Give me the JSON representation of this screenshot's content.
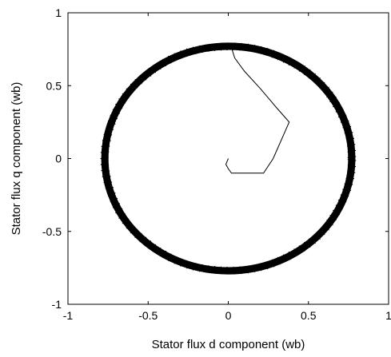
{
  "chart_data": {
    "type": "line",
    "title": "",
    "xlabel": "Stator flux d component (wb)",
    "ylabel": "Stator flux q component (wb)",
    "xlim": [
      -1,
      1
    ],
    "ylim": [
      -1,
      1
    ],
    "xticks": [
      -1,
      -0.5,
      0,
      0.5,
      1
    ],
    "yticks": [
      -1,
      -0.5,
      0,
      0.5,
      1
    ],
    "xtick_labels": [
      "-1",
      "-0.5",
      "0",
      "0.5",
      "1"
    ],
    "ytick_labels": [
      "-1",
      "-0.5",
      "0",
      "0.5",
      "1"
    ],
    "grid": false,
    "legend": "none",
    "line_color": "#000000",
    "series": [
      {
        "kind": "transient",
        "x": [
          0.0,
          -0.015,
          0.0,
          0.02,
          0.22,
          0.28,
          0.38,
          0.3,
          0.2,
          0.1,
          0.04,
          0.02
        ],
        "y": [
          0.0,
          -0.04,
          -0.07,
          -0.1,
          -0.1,
          0.0,
          0.25,
          0.35,
          0.48,
          0.6,
          0.69,
          0.76
        ]
      },
      {
        "kind": "steady-state-circle",
        "center": [
          0.0,
          0.0
        ],
        "radius": 0.77,
        "band_width": 0.05
      }
    ]
  }
}
